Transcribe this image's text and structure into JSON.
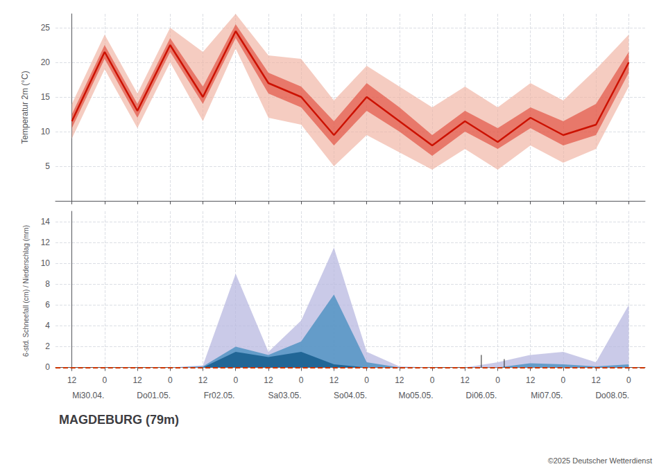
{
  "chart_data": [
    {
      "type": "line",
      "title": "MAGDEBURG (79m)",
      "y_label": "Temperatur 2m (°C)",
      "categories": [
        "12",
        "0",
        "12",
        "0",
        "12",
        "0",
        "12",
        "0",
        "12",
        "0",
        "12",
        "0",
        "12",
        "0",
        "12",
        "0",
        "12",
        "0"
      ],
      "values": [
        11.5,
        21.5,
        13.0,
        22.5,
        15.0,
        24.5,
        17.0,
        15.0,
        9.5,
        15.0,
        11.5,
        8.0,
        11.5,
        8.5,
        12.0,
        9.5,
        11.0,
        20.0
      ],
      "color": "#cc1100",
      "bands": [
        {
          "color": "#f0b0a0",
          "lower": [
            9.0,
            19.0,
            10.5,
            20.0,
            11.5,
            22.0,
            12.0,
            11.0,
            5.0,
            9.5,
            7.0,
            4.5,
            7.5,
            4.5,
            8.0,
            5.5,
            7.5,
            16.5
          ],
          "upper": [
            14.0,
            24.0,
            15.5,
            25.0,
            21.5,
            27.0,
            21.0,
            20.5,
            14.5,
            19.5,
            16.5,
            13.5,
            16.5,
            13.5,
            17.0,
            14.5,
            19.0,
            24.0
          ]
        },
        {
          "color": "#dd3322",
          "lower": [
            10.5,
            20.5,
            12.0,
            21.5,
            14.0,
            23.5,
            15.5,
            13.5,
            8.0,
            13.0,
            10.0,
            6.5,
            10.0,
            7.5,
            10.5,
            8.0,
            9.5,
            18.5
          ],
          "upper": [
            12.5,
            22.5,
            14.0,
            23.5,
            16.5,
            25.5,
            18.5,
            16.5,
            11.5,
            17.0,
            13.5,
            9.5,
            13.0,
            10.5,
            13.5,
            11.5,
            14.0,
            21.5
          ]
        }
      ],
      "ylim": [
        0,
        27
      ],
      "yticks": [
        5,
        10,
        15,
        20,
        25
      ],
      "grid": true,
      "tick_labels": "y"
    },
    {
      "type": "area",
      "y_label": "6-std. Schneefall (cm) / Niederschlag (mm)",
      "categories": [
        "12",
        "0",
        "12",
        "0",
        "12",
        "0",
        "12",
        "0",
        "12",
        "0",
        "12",
        "0",
        "12",
        "0",
        "12",
        "0",
        "12",
        "0"
      ],
      "day_labels": [
        "Mi30.04.",
        "Do01.05.",
        "Fr02.05.",
        "Sa03.05.",
        "So04.05.",
        "Mo05.05.",
        "Di06.05.",
        "Mi07.05.",
        "Do08.05."
      ],
      "series": [
        {
          "color": "#b8b8e0",
          "values": [
            0.0,
            0.0,
            0.0,
            0.0,
            0.2,
            9.0,
            1.5,
            4.5,
            11.5,
            1.5,
            0.1,
            0.0,
            0.0,
            0.5,
            1.2,
            1.5,
            0.5,
            6.0
          ]
        },
        {
          "color": "#4a90c0",
          "values": [
            0.0,
            0.0,
            0.0,
            0.0,
            0.1,
            2.0,
            1.2,
            2.5,
            7.0,
            0.5,
            0.0,
            0.0,
            0.0,
            0.0,
            0.4,
            0.3,
            0.1,
            0.3
          ]
        },
        {
          "color": "#1a6090",
          "values": [
            0.0,
            0.0,
            0.0,
            0.0,
            0.0,
            1.5,
            1.0,
            1.5,
            0.3,
            0.0,
            0.0,
            0.0,
            0.0,
            0.0,
            0.0,
            0.0,
            0.0,
            0.0
          ]
        }
      ],
      "baseline": {
        "value": 0,
        "color": "#cc3300",
        "line_style": "dashed"
      },
      "vertical_lines": [
        {
          "x": 12.5,
          "values": [
            0,
            1.2
          ],
          "color": "#222222"
        },
        {
          "x": 13.2,
          "values": [
            0,
            0.8
          ],
          "color": "#222222"
        }
      ],
      "ylim": [
        -0.3,
        15
      ],
      "yticks": [
        0,
        2,
        4,
        6,
        8,
        10,
        12,
        14
      ],
      "grid": true,
      "annotations": [
        "©2025 Deutscher Wetterdienst"
      ]
    }
  ]
}
